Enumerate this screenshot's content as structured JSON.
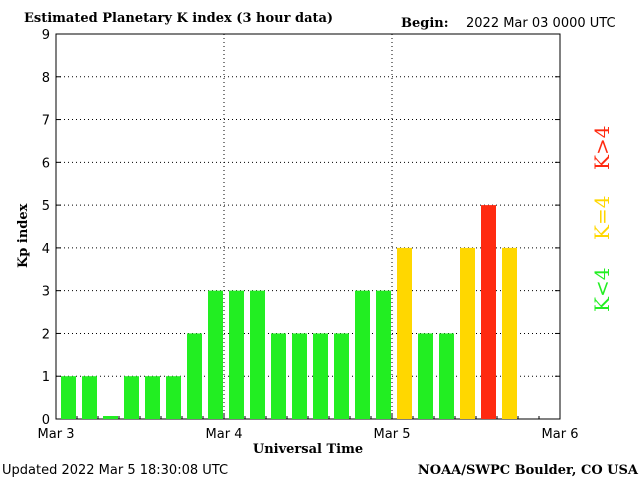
{
  "header": {
    "title": "Estimated Planetary K index (3 hour data)",
    "begin_label": "Begin:",
    "begin_value": "2022 Mar 03 0000 UTC"
  },
  "footer": {
    "updated": "Updated 2022 Mar  5 18:30:08 UTC",
    "source": "NOAA/SWPC Boulder, CO USA"
  },
  "legend": {
    "below": "K<4",
    "equal": "K=4",
    "above": "K>4"
  },
  "colors": {
    "below": "#22ee22",
    "equal": "#ffd700",
    "above": "#ff2a10"
  },
  "chart_data": {
    "type": "bar",
    "ylabel": "Kp index",
    "xlabel": "Universal Time",
    "ylim": [
      0,
      9
    ],
    "yticks": [
      "0",
      "1",
      "2",
      "3",
      "4",
      "5",
      "6",
      "7",
      "8",
      "9"
    ],
    "xticks": [
      "Mar 3",
      "Mar 4",
      "Mar 5",
      "Mar 6"
    ],
    "grid": "dotted",
    "bars_per_day": 8,
    "values": [
      1,
      1,
      0.07,
      1,
      1,
      1,
      2,
      3,
      3,
      3,
      2,
      2,
      2,
      2,
      3,
      3,
      4,
      2,
      2,
      4,
      5,
      4
    ]
  }
}
